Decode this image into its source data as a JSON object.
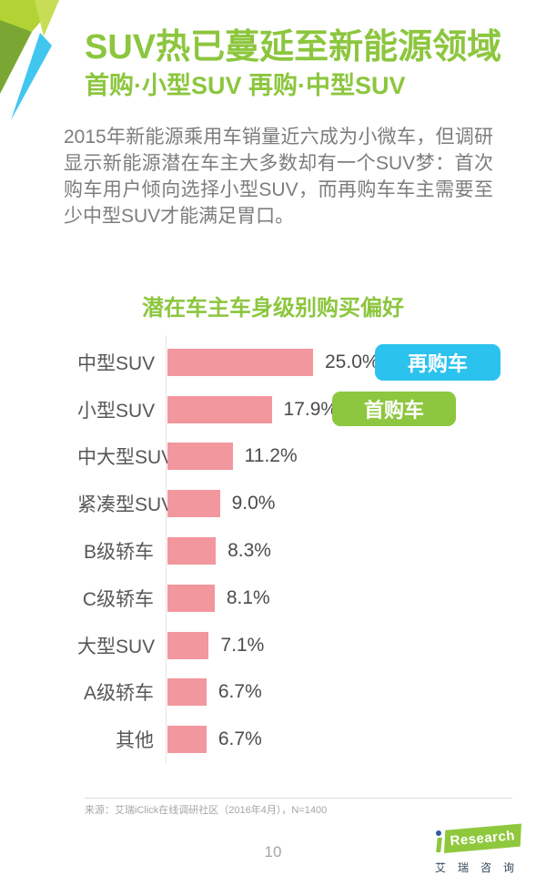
{
  "header": {
    "title": "SUV热已蔓延至新能源领域",
    "subtitle": "首购·小型SUV 再购·中型SUV"
  },
  "intro": {
    "text": "2015年新能源乘用车销量近六成为小微车，但调研显示新能源潜在车主大多数却有一个SUV梦：首次购车用户倾向选择小型SUV，而再购车车主需要至少中型SUV才能满足胃口。"
  },
  "chart_data": {
    "type": "bar",
    "orientation": "horizontal",
    "title": "潜在车主车身级别购买偏好",
    "categories": [
      "中型SUV",
      "小型SUV",
      "中大型SUV",
      "紧凑型SUV",
      "B级轿车",
      "C级轿车",
      "大型SUV",
      "A级轿车",
      "其他"
    ],
    "values": [
      25.0,
      17.9,
      11.2,
      9.0,
      8.3,
      8.1,
      7.1,
      6.7,
      6.7
    ],
    "value_labels": [
      "25.0%",
      "17.9%",
      "11.2%",
      "9.0%",
      "8.3%",
      "8.1%",
      "7.1%",
      "6.7%",
      "6.7%"
    ],
    "unit": "%",
    "xlim": [
      0,
      30
    ],
    "grid": false,
    "bar_color": "#f2979d",
    "legend": [
      {
        "label": "再购车",
        "color": "#2cc2ee"
      },
      {
        "label": "首购车",
        "color": "#8dc63f"
      }
    ],
    "legend_position": "right-of-top-bars"
  },
  "source": {
    "text": "来源：艾瑞iClick在线调研社区（2016年4月），N=1400"
  },
  "footer": {
    "page_number": "10"
  },
  "logo": {
    "prefix": "i",
    "brand": "Research",
    "cn_name": "艾瑞咨询"
  },
  "colors": {
    "brand_green": "#8cc63e",
    "legend_blue": "#2cc2ee",
    "bar_pink": "#f2979d",
    "body_gray": "#7d7d7d",
    "label_gray": "#575757"
  }
}
